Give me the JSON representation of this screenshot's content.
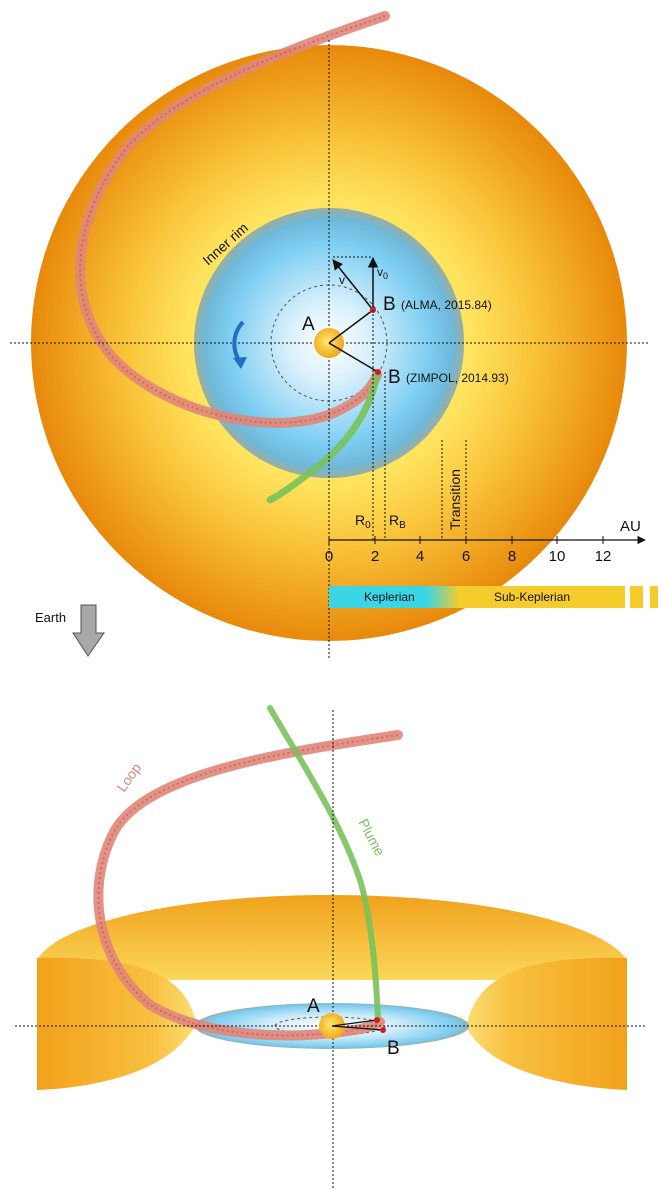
{
  "colors": {
    "disk_outer": "#e8890b",
    "disk_inner": "#ffe35e",
    "cavity_center": "#ffffff",
    "cavity_edge": "#5fc1ef",
    "loop": "#e0867a",
    "loop_dark": "#c8543e",
    "plume": "#79c25a",
    "star": "#f6c21a",
    "keplerian": "#3ad6e6",
    "sub_keplerian": "#f4cc2c",
    "rotation_arrow": "#1f6fc4",
    "earth_arrow": "#9a9a9a",
    "point_b": "#d61a1a"
  },
  "top_view": {
    "inner_rim": "Inner rim",
    "star_label": "A",
    "b_alma_letter": "B",
    "b_alma_note": "(ALMA, 2015.84)",
    "b_zimpol_letter": "B",
    "b_zimpol_note": "(ZIMPOL, 2014.93)",
    "v_label": "v",
    "v0_main": "v",
    "v0_sub": "0",
    "r0_main": "R",
    "r0_sub": "0",
    "rb_main": "R",
    "rb_sub": "B",
    "transition": "Transition",
    "axis_unit": "AU",
    "axis_ticks": [
      "0",
      "2",
      "4",
      "6",
      "8",
      "10",
      "12"
    ],
    "keplerian": "Keplerian",
    "sub_keplerian": "Sub-Keplerian",
    "earth": "Earth"
  },
  "side_view": {
    "loop": "Loop",
    "plume": "Plume",
    "star_label": "A",
    "b_label": "B"
  }
}
